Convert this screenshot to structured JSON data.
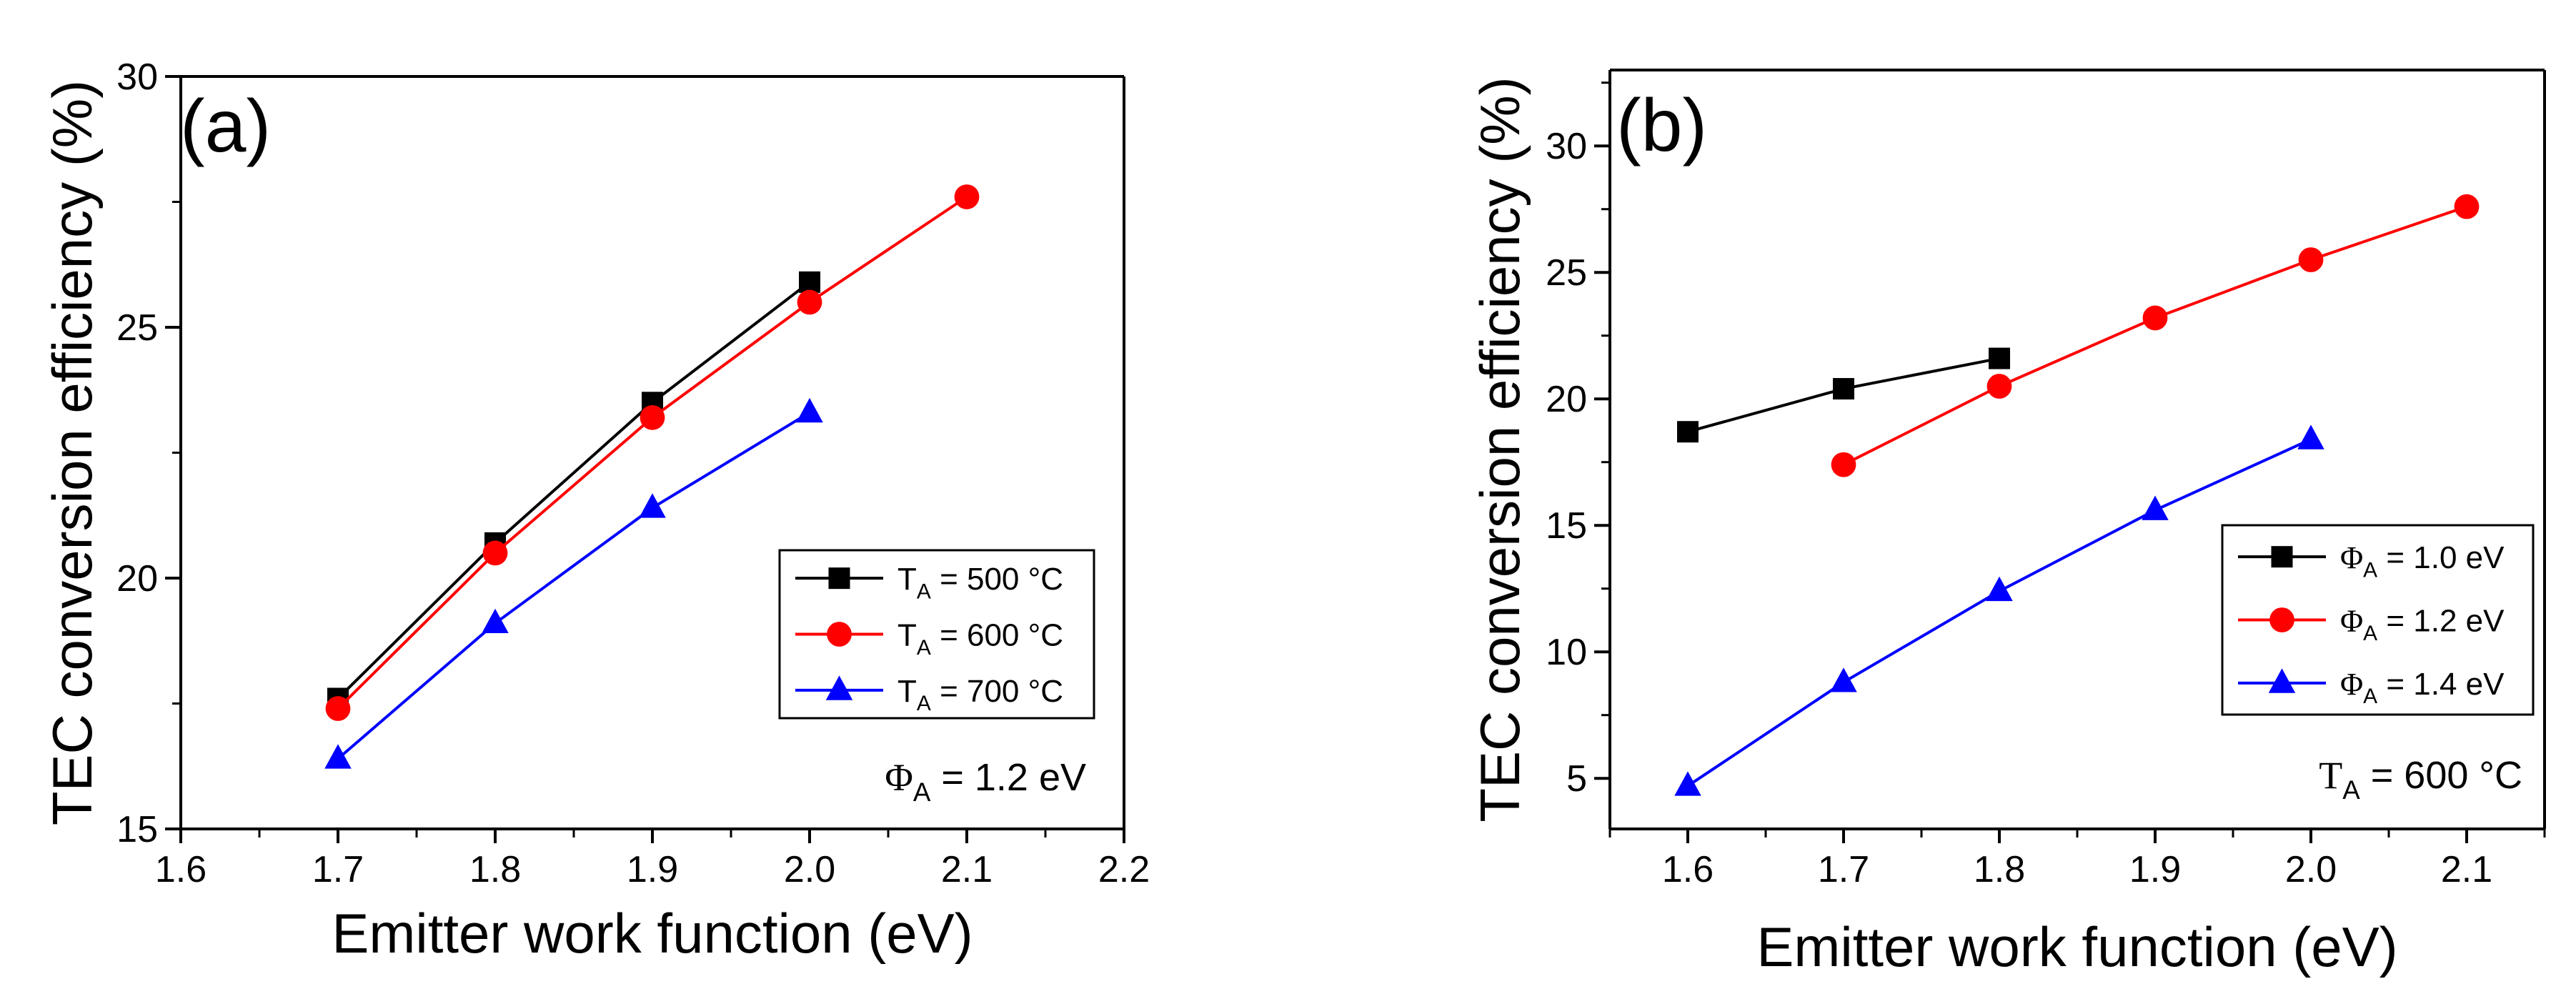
{
  "chart_data": [
    {
      "type": "line",
      "panel_label": "(a)",
      "xlabel": "Emitter work function (eV)",
      "ylabel": "TEC conversion efficiency (%)",
      "xlim": [
        1.6,
        2.2
      ],
      "ylim": [
        15,
        30
      ],
      "xticks": [
        "1.6",
        "1.7",
        "1.8",
        "1.9",
        "2.0",
        "2.1",
        "2.2"
      ],
      "yticks": [
        "15",
        "20",
        "25",
        "30"
      ],
      "legend_position": "center-right",
      "annotation": {
        "symbol": "Φ",
        "sub": "A",
        "text": " = 1.2 eV"
      },
      "series": [
        {
          "name": "T_A = 500 °C",
          "legend": {
            "main": "T",
            "sub": "A",
            "text": " = 500 °C"
          },
          "color": "#000000",
          "marker": "square",
          "x": [
            1.7,
            1.8,
            1.9,
            2.0
          ],
          "y": [
            17.6,
            20.7,
            23.5,
            25.9
          ]
        },
        {
          "name": "T_A = 600 °C",
          "legend": {
            "main": "T",
            "sub": "A",
            "text": " = 600 °C"
          },
          "color": "#ff0000",
          "marker": "circle",
          "x": [
            1.7,
            1.8,
            1.9,
            2.0,
            2.1
          ],
          "y": [
            17.4,
            20.5,
            23.2,
            25.5,
            27.6
          ]
        },
        {
          "name": "T_A = 700 °C",
          "legend": {
            "main": "T",
            "sub": "A",
            "text": " = 700 °C"
          },
          "color": "#0000ff",
          "marker": "triangle",
          "x": [
            1.7,
            1.8,
            1.9,
            2.0
          ],
          "y": [
            16.4,
            19.1,
            21.4,
            23.3
          ]
        }
      ]
    },
    {
      "type": "line",
      "panel_label": "(b)",
      "xlabel": "Emitter work function (eV)",
      "ylabel": "TEC conversion efficiency (%)",
      "xlim": [
        1.55,
        2.15
      ],
      "ylim": [
        3,
        33
      ],
      "xticks": [
        "1.6",
        "1.7",
        "1.8",
        "1.9",
        "2.0",
        "2.1"
      ],
      "yticks": [
        "5",
        "10",
        "15",
        "20",
        "25",
        "30"
      ],
      "legend_position": "lower-right",
      "annotation": {
        "symbol": "T",
        "sub": "A",
        "text": " = 600 °C"
      },
      "series": [
        {
          "name": "Φ_A = 1.0 eV",
          "legend": {
            "main": "Φ",
            "sub": "A",
            "text": " = 1.0 eV"
          },
          "color": "#000000",
          "marker": "square",
          "x": [
            1.6,
            1.7,
            1.8
          ],
          "y": [
            18.7,
            20.4,
            21.6
          ]
        },
        {
          "name": "Φ_A = 1.2 eV",
          "legend": {
            "main": "Φ",
            "sub": "A",
            "text": " = 1.2 eV"
          },
          "color": "#ff0000",
          "marker": "circle",
          "x": [
            1.7,
            1.8,
            1.9,
            2.0,
            2.1
          ],
          "y": [
            17.4,
            20.5,
            23.2,
            25.5,
            27.6
          ]
        },
        {
          "name": "Φ_A = 1.4 eV",
          "legend": {
            "main": "Φ",
            "sub": "A",
            "text": " = 1.4 eV"
          },
          "color": "#0000ff",
          "marker": "triangle",
          "x": [
            1.6,
            1.7,
            1.8,
            1.9,
            2.0
          ],
          "y": [
            4.7,
            8.8,
            12.4,
            15.6,
            18.4
          ]
        }
      ]
    }
  ]
}
